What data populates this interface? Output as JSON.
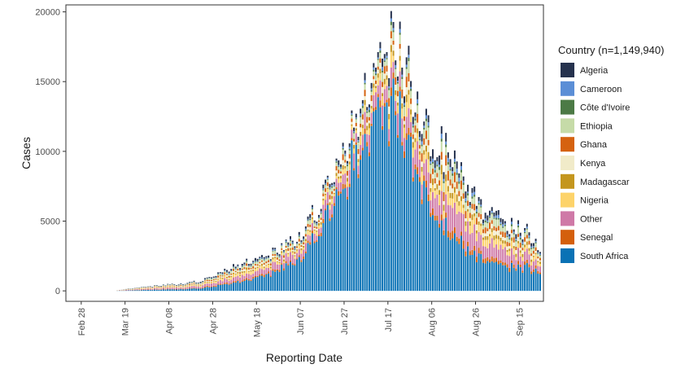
{
  "chart_data": {
    "type": "bar",
    "stacked": true,
    "xlabel": "Reporting Date",
    "ylabel": "Cases",
    "ylim": [
      -750,
      20500
    ],
    "yticks": [
      0,
      5000,
      10000,
      15000,
      20000
    ],
    "x_start": "2020-02-21",
    "x_end": "2020-09-26",
    "xticks": [
      {
        "label": "Feb 28",
        "date": "2020-02-28"
      },
      {
        "label": "Mar 19",
        "date": "2020-03-19"
      },
      {
        "label": "Apr 08",
        "date": "2020-04-08"
      },
      {
        "label": "Apr 28",
        "date": "2020-04-28"
      },
      {
        "label": "May 18",
        "date": "2020-05-18"
      },
      {
        "label": "Jun 07",
        "date": "2020-06-07"
      },
      {
        "label": "Jun 27",
        "date": "2020-06-27"
      },
      {
        "label": "Jul 17",
        "date": "2020-07-17"
      },
      {
        "label": "Aug 06",
        "date": "2020-08-06"
      },
      {
        "label": "Aug 26",
        "date": "2020-08-26"
      },
      {
        "label": "Sep 15",
        "date": "2020-09-15"
      }
    ],
    "grid": false,
    "legend_position": "right",
    "legend_title": "Country  (n=1,149,940)",
    "series": [
      {
        "name": "Algeria",
        "color": "#26324e"
      },
      {
        "name": "Cameroon",
        "color": "#5b8ed6"
      },
      {
        "name": "Côte d'Ivoire",
        "color": "#4c7a45"
      },
      {
        "name": "Ethiopia",
        "color": "#c6dba8"
      },
      {
        "name": "Ghana",
        "color": "#d5620f"
      },
      {
        "name": "Kenya",
        "color": "#f1ebc9"
      },
      {
        "name": "Madagascar",
        "color": "#c4961e"
      },
      {
        "name": "Nigeria",
        "color": "#fdd36a"
      },
      {
        "name": "Other",
        "color": "#cf79a7"
      },
      {
        "name": "Senegal",
        "color": "#d45f0c"
      },
      {
        "name": "South Africa",
        "color": "#0a72b5"
      }
    ],
    "daily_totals": [
      {
        "date": "2020-03-15",
        "total": 40
      },
      {
        "date": "2020-03-22",
        "total": 200
      },
      {
        "date": "2020-03-29",
        "total": 330
      },
      {
        "date": "2020-04-05",
        "total": 420
      },
      {
        "date": "2020-04-12",
        "total": 520
      },
      {
        "date": "2020-04-19",
        "total": 650
      },
      {
        "date": "2020-04-26",
        "total": 900
      },
      {
        "date": "2020-05-03",
        "total": 1500
      },
      {
        "date": "2020-05-10",
        "total": 1900
      },
      {
        "date": "2020-05-17",
        "total": 2300
      },
      {
        "date": "2020-05-24",
        "total": 2700
      },
      {
        "date": "2020-05-31",
        "total": 3300
      },
      {
        "date": "2020-06-07",
        "total": 4300
      },
      {
        "date": "2020-06-14",
        "total": 6000
      },
      {
        "date": "2020-06-21",
        "total": 8000
      },
      {
        "date": "2020-06-28",
        "total": 10800
      },
      {
        "date": "2020-07-05",
        "total": 13500
      },
      {
        "date": "2020-07-12",
        "total": 16800
      },
      {
        "date": "2020-07-17",
        "total": 18000
      },
      {
        "date": "2020-07-23",
        "total": 17500
      },
      {
        "date": "2020-07-27",
        "total": 15500
      },
      {
        "date": "2020-08-02",
        "total": 12500
      },
      {
        "date": "2020-08-08",
        "total": 11000
      },
      {
        "date": "2020-08-15",
        "total": 9500
      },
      {
        "date": "2020-08-22",
        "total": 8000
      },
      {
        "date": "2020-08-29",
        "total": 6200
      },
      {
        "date": "2020-09-05",
        "total": 5500
      },
      {
        "date": "2020-09-12",
        "total": 4700
      },
      {
        "date": "2020-09-19",
        "total": 4300
      },
      {
        "date": "2020-09-24",
        "total": 3200
      }
    ],
    "share_waypoints": [
      {
        "date": "2020-03-15",
        "south_africa": 0.2
      },
      {
        "date": "2020-04-20",
        "south_africa": 0.25
      },
      {
        "date": "2020-05-18",
        "south_africa": 0.4
      },
      {
        "date": "2020-06-07",
        "south_africa": 0.62
      },
      {
        "date": "2020-07-05",
        "south_africa": 0.8
      },
      {
        "date": "2020-07-26",
        "south_africa": 0.7
      },
      {
        "date": "2020-08-15",
        "south_africa": 0.4
      },
      {
        "date": "2020-09-05",
        "south_africa": 0.35
      },
      {
        "date": "2020-09-24",
        "south_africa": 0.4
      }
    ]
  }
}
